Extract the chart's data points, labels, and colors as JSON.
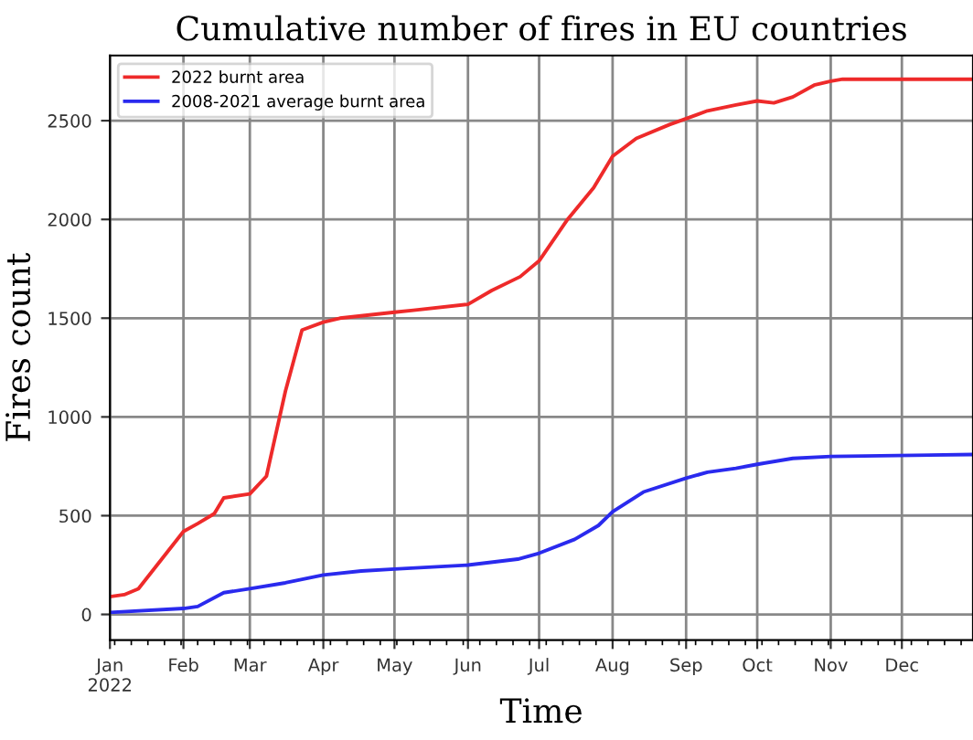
{
  "chart_data": {
    "type": "line",
    "title": "Cumulative number of fires in EU countries",
    "xlabel": "Time",
    "ylabel": "Fires count",
    "xlim": [
      "2022-01-01",
      "2022-12-31"
    ],
    "ylim": [
      -130,
      2830
    ],
    "yticks": [
      0,
      500,
      1000,
      1500,
      2000,
      2500
    ],
    "xticks": [
      {
        "value": "2022-01-01",
        "label": "Jan\n2022"
      },
      {
        "value": "2022-02-01",
        "label": "Feb"
      },
      {
        "value": "2022-03-01",
        "label": "Mar"
      },
      {
        "value": "2022-04-01",
        "label": "Apr"
      },
      {
        "value": "2022-05-01",
        "label": "May"
      },
      {
        "value": "2022-06-01",
        "label": "Jun"
      },
      {
        "value": "2022-07-01",
        "label": "Jul"
      },
      {
        "value": "2022-08-01",
        "label": "Aug"
      },
      {
        "value": "2022-09-01",
        "label": "Sep"
      },
      {
        "value": "2022-10-01",
        "label": "Oct"
      },
      {
        "value": "2022-11-01",
        "label": "Nov"
      },
      {
        "value": "2022-12-01",
        "label": "Dec"
      }
    ],
    "grid": true,
    "legend": "top left",
    "marker": "none",
    "line_style": "solid",
    "series": [
      {
        "name": "2022 burnt area",
        "color": "#ee2a2a",
        "x": [
          "2022-01-01",
          "2022-01-07",
          "2022-01-13",
          "2022-02-01",
          "2022-02-07",
          "2022-02-14",
          "2022-02-18",
          "2022-03-01",
          "2022-03-08",
          "2022-03-16",
          "2022-03-23",
          "2022-04-01",
          "2022-04-08",
          "2022-05-01",
          "2022-05-09",
          "2022-06-01",
          "2022-06-11",
          "2022-06-23",
          "2022-07-01",
          "2022-07-13",
          "2022-07-24",
          "2022-08-01",
          "2022-08-11",
          "2022-08-25",
          "2022-09-01",
          "2022-09-10",
          "2022-09-22",
          "2022-10-01",
          "2022-10-08",
          "2022-10-16",
          "2022-10-25",
          "2022-11-01",
          "2022-11-06",
          "2022-12-31"
        ],
        "values": [
          90,
          100,
          130,
          420,
          460,
          510,
          590,
          610,
          700,
          1130,
          1440,
          1480,
          1500,
          1530,
          1540,
          1570,
          1640,
          1710,
          1790,
          2000,
          2160,
          2320,
          2410,
          2480,
          2510,
          2550,
          2580,
          2600,
          2590,
          2620,
          2680,
          2700,
          2710,
          2710
        ]
      },
      {
        "name": "2008-2021 average burnt area",
        "color": "#2a2aee",
        "x": [
          "2022-01-01",
          "2022-02-01",
          "2022-02-07",
          "2022-02-18",
          "2022-03-01",
          "2022-03-16",
          "2022-04-01",
          "2022-04-17",
          "2022-05-01",
          "2022-06-01",
          "2022-06-22",
          "2022-07-01",
          "2022-07-16",
          "2022-07-26",
          "2022-08-01",
          "2022-08-14",
          "2022-09-01",
          "2022-09-10",
          "2022-09-22",
          "2022-10-01",
          "2022-10-16",
          "2022-11-01",
          "2022-12-31"
        ],
        "values": [
          10,
          30,
          40,
          110,
          130,
          160,
          200,
          220,
          230,
          250,
          280,
          310,
          380,
          450,
          520,
          620,
          690,
          720,
          740,
          760,
          790,
          800,
          810
        ]
      }
    ]
  }
}
